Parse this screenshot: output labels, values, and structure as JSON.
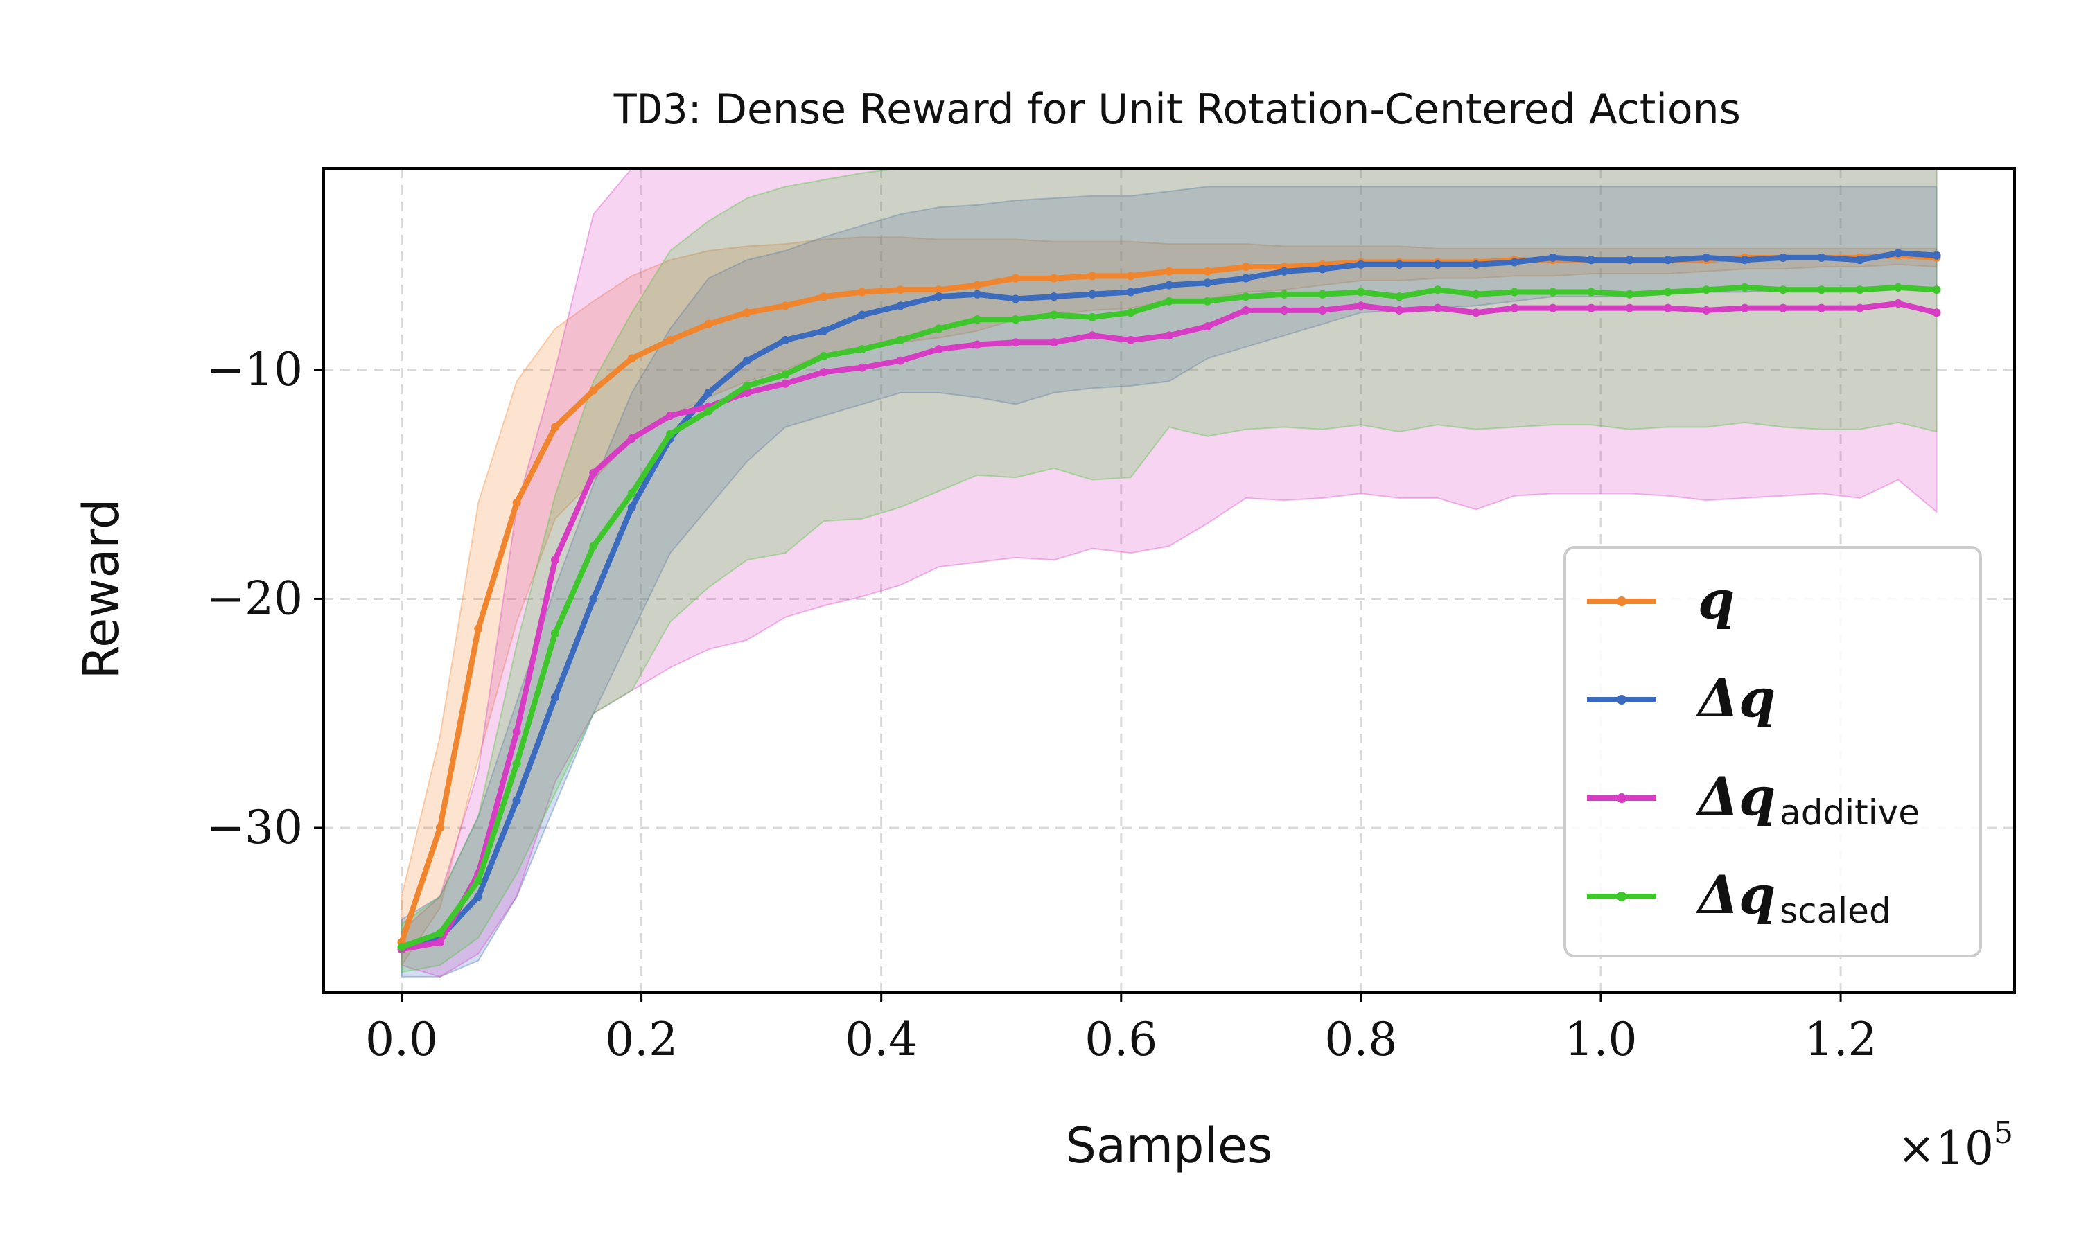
{
  "chart_data": {
    "type": "line",
    "title_prefix": "TD3",
    "title_rest": ": Dense Reward for Unit Rotation-Centered Actions",
    "xlabel": "Samples",
    "ylabel": "Reward",
    "x_multiplier": "×10",
    "x_multiplier_exp": "5",
    "xlim": [
      -0.065,
      1.345
    ],
    "ylim": [
      -37.2,
      -1.2
    ],
    "xticks": [
      0.0,
      0.2,
      0.4,
      0.6,
      0.8,
      1.0,
      1.2
    ],
    "xtick_labels": [
      "0.0",
      "0.2",
      "0.4",
      "0.6",
      "0.8",
      "1.0",
      "1.2"
    ],
    "yticks": [
      -10,
      -20,
      -30
    ],
    "ytick_labels": [
      "−10",
      "−20",
      "−30"
    ],
    "grid": true,
    "legend_position": "lower-right",
    "x": [
      0.0,
      0.032,
      0.064,
      0.096,
      0.128,
      0.16,
      0.192,
      0.224,
      0.256,
      0.288,
      0.32,
      0.352,
      0.384,
      0.416,
      0.448,
      0.48,
      0.512,
      0.544,
      0.576,
      0.608,
      0.64,
      0.672,
      0.704,
      0.736,
      0.768,
      0.8,
      0.832,
      0.864,
      0.896,
      0.928,
      0.96,
      0.992,
      1.024,
      1.056,
      1.088,
      1.12,
      1.152,
      1.184,
      1.216,
      1.248,
      1.28
    ],
    "series": [
      {
        "name": "q",
        "label_main": "q",
        "label_sub": "",
        "color": "#f0852d",
        "values": [
          -35.0,
          -30.0,
          -21.3,
          -15.8,
          -12.5,
          -10.9,
          -9.5,
          -8.7,
          -8.0,
          -7.5,
          -7.2,
          -6.8,
          -6.6,
          -6.5,
          -6.5,
          -6.3,
          -6.0,
          -6.0,
          -5.9,
          -5.9,
          -5.7,
          -5.7,
          -5.5,
          -5.5,
          -5.4,
          -5.3,
          -5.3,
          -5.3,
          -5.3,
          -5.2,
          -5.2,
          -5.2,
          -5.2,
          -5.2,
          -5.2,
          -5.1,
          -5.1,
          -5.1,
          -5.1,
          -5.0,
          -5.1
        ],
        "upper": [
          -33.0,
          -26.0,
          -15.8,
          -10.5,
          -8.2,
          -7.0,
          -5.9,
          -5.2,
          -4.8,
          -4.6,
          -4.5,
          -4.3,
          -4.2,
          -4.2,
          -4.3,
          -4.3,
          -4.3,
          -4.4,
          -4.4,
          -4.4,
          -4.5,
          -4.5,
          -4.5,
          -4.6,
          -4.6,
          -4.6,
          -4.6,
          -4.7,
          -4.7,
          -4.7,
          -4.7,
          -4.7,
          -4.7,
          -4.7,
          -4.7,
          -4.7,
          -4.7,
          -4.7,
          -4.7,
          -4.7,
          -4.7
        ],
        "lower": [
          -36.0,
          -33.5,
          -27.0,
          -21.0,
          -16.5,
          -14.8,
          -13.0,
          -12.0,
          -11.2,
          -10.5,
          -10.0,
          -9.3,
          -9.0,
          -8.8,
          -8.6,
          -8.3,
          -7.8,
          -7.6,
          -7.4,
          -7.3,
          -7.0,
          -6.9,
          -6.6,
          -6.5,
          -6.3,
          -6.1,
          -6.1,
          -6.0,
          -6.0,
          -5.9,
          -5.9,
          -5.8,
          -5.8,
          -5.8,
          -5.7,
          -5.6,
          -5.6,
          -5.5,
          -5.5,
          -5.4,
          -5.5
        ]
      },
      {
        "name": "Δq",
        "label_main": "Δq",
        "label_sub": "",
        "color": "#3a6bbf",
        "values": [
          -35.3,
          -34.8,
          -33.0,
          -28.8,
          -24.3,
          -20.0,
          -16.0,
          -13.0,
          -11.0,
          -9.6,
          -8.7,
          -8.3,
          -7.6,
          -7.2,
          -6.8,
          -6.7,
          -6.9,
          -6.8,
          -6.7,
          -6.6,
          -6.3,
          -6.2,
          -6.0,
          -5.7,
          -5.6,
          -5.4,
          -5.4,
          -5.4,
          -5.4,
          -5.3,
          -5.1,
          -5.2,
          -5.2,
          -5.2,
          -5.1,
          -5.2,
          -5.1,
          -5.1,
          -5.2,
          -4.9,
          -5.0
        ],
        "upper": [
          -34.0,
          -33.0,
          -29.5,
          -24.5,
          -19.5,
          -15.0,
          -11.0,
          -8.2,
          -6.0,
          -5.2,
          -4.8,
          -4.2,
          -3.7,
          -3.2,
          -2.9,
          -2.8,
          -2.6,
          -2.5,
          -2.4,
          -2.4,
          -2.2,
          -2.0,
          -2.0,
          -2.0,
          -2.0,
          -2.0,
          -2.0,
          -2.0,
          -2.0,
          -2.0,
          -2.0,
          -2.0,
          -2.0,
          -2.0,
          -2.0,
          -2.0,
          -2.0,
          -2.0,
          -2.0,
          -2.0,
          -2.0
        ],
        "lower": [
          -36.5,
          -36.5,
          -35.8,
          -33.0,
          -29.0,
          -25.0,
          -21.5,
          -18.0,
          -16.0,
          -14.0,
          -12.5,
          -12.0,
          -11.5,
          -11.0,
          -11.0,
          -11.2,
          -11.5,
          -11.0,
          -10.8,
          -10.7,
          -10.5,
          -9.5,
          -9.0,
          -8.5,
          -8.0,
          -7.5,
          -7.4,
          -7.3,
          -7.2,
          -7.0,
          -6.8,
          -6.8,
          -6.8,
          -6.7,
          -6.6,
          -6.6,
          -6.5,
          -6.5,
          -6.5,
          -6.4,
          -6.4
        ]
      },
      {
        "name": "Δq additive",
        "label_main": "Δq",
        "label_sub": "additive",
        "color": "#d83cc4",
        "values": [
          -35.3,
          -35.0,
          -32.0,
          -25.8,
          -18.3,
          -14.5,
          -13.0,
          -12.0,
          -11.6,
          -11.0,
          -10.6,
          -10.1,
          -9.9,
          -9.6,
          -9.1,
          -8.9,
          -8.8,
          -8.8,
          -8.5,
          -8.7,
          -8.5,
          -8.1,
          -7.4,
          -7.4,
          -7.4,
          -7.2,
          -7.4,
          -7.3,
          -7.5,
          -7.3,
          -7.3,
          -7.3,
          -7.3,
          -7.3,
          -7.4,
          -7.3,
          -7.3,
          -7.3,
          -7.3,
          -7.1,
          -7.5
        ],
        "upper": [
          -34.5,
          -33.0,
          -27.5,
          -16.0,
          -10.0,
          -3.2,
          -1.2,
          -1.2,
          -1.2,
          -1.2,
          -1.2,
          -1.2,
          -1.2,
          -1.2,
          -1.2,
          -1.2,
          -1.2,
          -1.2,
          -1.2,
          -1.2,
          -1.2,
          -1.2,
          -1.2,
          -1.2,
          -1.2,
          -1.2,
          -1.2,
          -1.2,
          -1.2,
          -1.2,
          -1.2,
          -1.2,
          -1.2,
          -1.2,
          -1.2,
          -1.2,
          -1.2,
          -1.2,
          -1.2,
          -1.2,
          -1.2
        ],
        "lower": [
          -36.0,
          -36.5,
          -35.5,
          -33.0,
          -28.0,
          -25.0,
          -24.0,
          -23.0,
          -22.2,
          -21.8,
          -20.8,
          -20.3,
          -19.9,
          -19.4,
          -18.6,
          -18.4,
          -18.2,
          -18.3,
          -17.8,
          -18.0,
          -17.7,
          -16.7,
          -15.6,
          -15.7,
          -15.6,
          -15.4,
          -15.6,
          -15.6,
          -16.1,
          -15.5,
          -15.4,
          -15.4,
          -15.4,
          -15.5,
          -15.7,
          -15.6,
          -15.5,
          -15.4,
          -15.6,
          -14.8,
          -16.2
        ]
      },
      {
        "name": "Δq scaled",
        "label_main": "Δq",
        "label_sub": "scaled",
        "color": "#3ec72b",
        "values": [
          -35.2,
          -34.6,
          -32.3,
          -27.2,
          -21.5,
          -17.7,
          -15.4,
          -12.8,
          -11.8,
          -10.7,
          -10.2,
          -9.4,
          -9.1,
          -8.7,
          -8.2,
          -7.8,
          -7.8,
          -7.6,
          -7.7,
          -7.5,
          -7.0,
          -7.0,
          -6.8,
          -6.7,
          -6.7,
          -6.6,
          -6.8,
          -6.5,
          -6.7,
          -6.6,
          -6.6,
          -6.6,
          -6.7,
          -6.6,
          -6.5,
          -6.4,
          -6.5,
          -6.5,
          -6.5,
          -6.4,
          -6.5
        ],
        "upper": [
          -34.2,
          -33.0,
          -29.5,
          -22.0,
          -15.5,
          -10.5,
          -7.5,
          -4.8,
          -3.5,
          -2.5,
          -2.0,
          -1.7,
          -1.4,
          -1.2,
          -1.2,
          -1.2,
          -1.2,
          -1.2,
          -1.2,
          -1.2,
          -1.2,
          -1.2,
          -1.2,
          -1.2,
          -1.2,
          -1.2,
          -1.2,
          -1.2,
          -1.2,
          -1.2,
          -1.2,
          -1.2,
          -1.2,
          -1.2,
          -1.2,
          -1.2,
          -1.2,
          -1.2,
          -1.2,
          -1.2,
          -1.2
        ],
        "lower": [
          -36.3,
          -36.0,
          -34.8,
          -32.0,
          -28.5,
          -25.0,
          -24.0,
          -21.0,
          -19.5,
          -18.3,
          -18.0,
          -16.6,
          -16.5,
          -16.0,
          -15.3,
          -14.6,
          -14.7,
          -14.3,
          -14.8,
          -14.7,
          -12.5,
          -12.9,
          -12.6,
          -12.5,
          -12.6,
          -12.4,
          -12.7,
          -12.4,
          -12.6,
          -12.5,
          -12.4,
          -12.4,
          -12.6,
          -12.5,
          -12.5,
          -12.3,
          -12.5,
          -12.6,
          -12.6,
          -12.3,
          -12.7
        ]
      }
    ]
  }
}
